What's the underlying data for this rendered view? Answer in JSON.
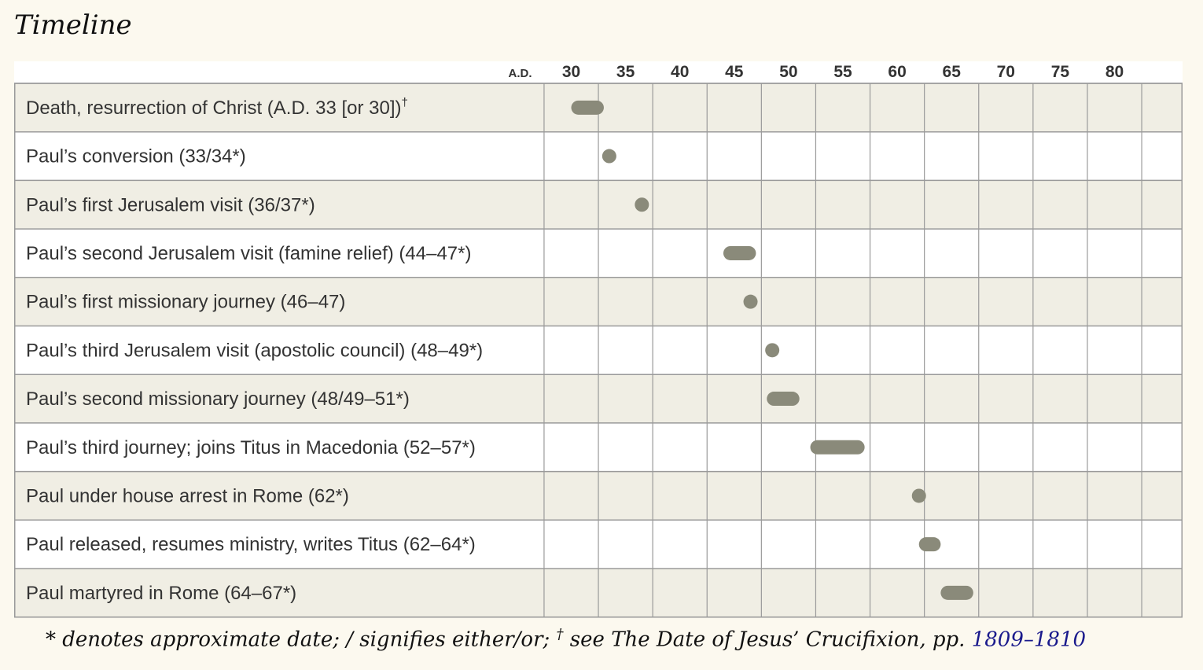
{
  "page": {
    "title": "Timeline",
    "footnote_pre": "* denotes approximate date; / signifies either/or; ",
    "footnote_dagger": "†",
    "footnote_mid": " see The Date of Jesus’ Crucifixion, pp. ",
    "footnote_link": "1809–1810"
  },
  "colors": {
    "bar": "#8a8a7a",
    "row_shaded": "#f0eee4",
    "row_plain": "#ffffff",
    "grid": "#9a9a9a",
    "link": "#1a1a8c"
  },
  "chart_data": {
    "type": "timeline",
    "axis_prefix": "A.D.",
    "ticks": [
      30,
      35,
      40,
      45,
      50,
      55,
      60,
      65,
      70,
      75,
      80
    ],
    "xlim": [
      25,
      85
    ],
    "grid": true,
    "events": [
      {
        "label": "Death, resurrection of Christ (A.D. 33 [or 30])",
        "dagger": "†",
        "start": 30,
        "end": 33
      },
      {
        "label": "Paul’s conversion (33/34*)",
        "start": 33,
        "end": 34
      },
      {
        "label": "Paul’s first Jerusalem visit (36/37*)",
        "start": 36,
        "end": 37
      },
      {
        "label": "Paul’s second Jerusalem visit (famine relief) (44–47*)",
        "start": 44,
        "end": 47
      },
      {
        "label": "Paul’s first missionary journey (46–47)",
        "start": 46,
        "end": 47
      },
      {
        "label": "Paul’s third Jerusalem visit (apostolic council) (48–49*)",
        "start": 48,
        "end": 49
      },
      {
        "label": "Paul’s second missionary journey (48/49–51*)",
        "start": 48,
        "end": 51
      },
      {
        "label": "Paul’s third journey; joins Titus in Macedonia (52–57*)",
        "start": 52,
        "end": 57
      },
      {
        "label": "Paul under house arrest in Rome (62*)",
        "start": 62,
        "end": 62
      },
      {
        "label": "Paul released, resumes ministry, writes Titus (62–64*)",
        "start": 62,
        "end": 64
      },
      {
        "label": "Paul martyred in Rome (64–67*)",
        "start": 64,
        "end": 67
      }
    ]
  }
}
